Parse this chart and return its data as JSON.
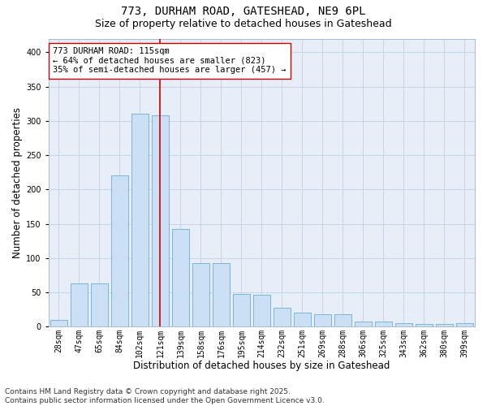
{
  "title_line1": "773, DURHAM ROAD, GATESHEAD, NE9 6PL",
  "title_line2": "Size of property relative to detached houses in Gateshead",
  "xlabel": "Distribution of detached houses by size in Gateshead",
  "ylabel": "Number of detached properties",
  "categories": [
    "28sqm",
    "47sqm",
    "65sqm",
    "84sqm",
    "102sqm",
    "121sqm",
    "139sqm",
    "158sqm",
    "176sqm",
    "195sqm",
    "214sqm",
    "232sqm",
    "251sqm",
    "269sqm",
    "288sqm",
    "306sqm",
    "325sqm",
    "343sqm",
    "362sqm",
    "380sqm",
    "399sqm"
  ],
  "values": [
    10,
    63,
    63,
    220,
    310,
    308,
    143,
    93,
    93,
    48,
    47,
    28,
    20,
    18,
    18,
    7,
    7,
    5,
    4,
    4,
    5
  ],
  "bar_color": "#cce0f5",
  "bar_edge_color": "#6aaed6",
  "highlight_index": 5,
  "highlight_color": "#cc0000",
  "annotation_text": "773 DURHAM ROAD: 115sqm\n← 64% of detached houses are smaller (823)\n35% of semi-detached houses are larger (457) →",
  "annotation_box_color": "#ffffff",
  "annotation_box_edge_color": "#cc0000",
  "ylim": [
    0,
    420
  ],
  "yticks": [
    0,
    50,
    100,
    150,
    200,
    250,
    300,
    350,
    400
  ],
  "grid_color": "#c5d5e8",
  "background_color": "#e8eef8",
  "footer_text": "Contains HM Land Registry data © Crown copyright and database right 2025.\nContains public sector information licensed under the Open Government Licence v3.0.",
  "title_fontsize": 10,
  "subtitle_fontsize": 9,
  "axis_label_fontsize": 8.5,
  "tick_fontsize": 7,
  "annotation_fontsize": 7.5,
  "footer_fontsize": 6.5,
  "fig_width": 6.0,
  "fig_height": 5.0,
  "dpi": 100
}
